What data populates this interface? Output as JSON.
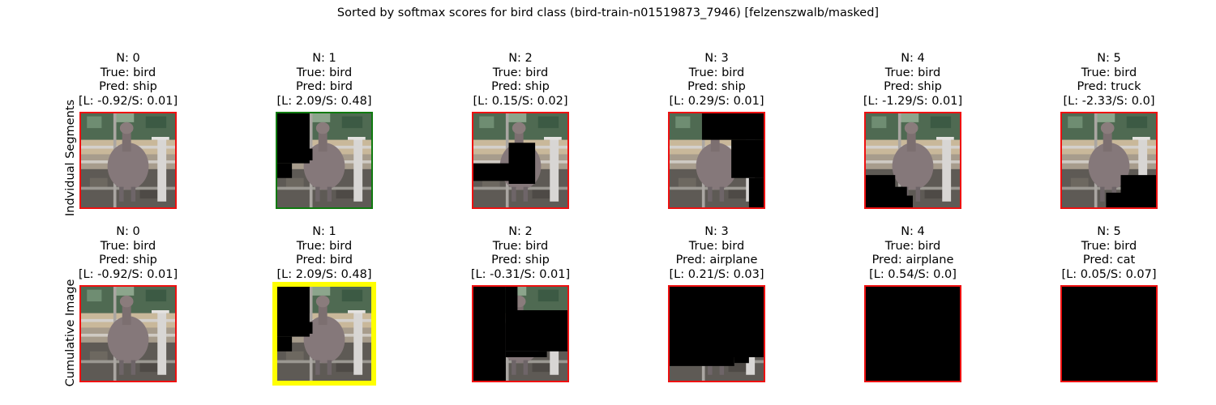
{
  "suptitle": "Sorted by softmax scores for bird class (bird-train-n01519873_7946) [felzenszwalb/masked]",
  "colors": {
    "red": "#ee1111",
    "green": "#0f7a0f",
    "yellow": "#ffff00"
  },
  "chart_data": {
    "type": "image-grid",
    "title": "Sorted by softmax scores for bird class (bird-train-n01519873_7946) [felzenszwalb/masked]",
    "rows": [
      {
        "label": "Indvidual Segments",
        "panels": [
          {
            "n": "N: 0",
            "true": "True: bird",
            "pred": "Pred: ship",
            "score": "[L: -0.92/S: 0.01]",
            "border": "red"
          },
          {
            "n": "N: 1",
            "true": "True: bird",
            "pred": "Pred: bird",
            "score": "[L: 2.09/S: 0.48]",
            "border": "green"
          },
          {
            "n": "N: 2",
            "true": "True: bird",
            "pred": "Pred: ship",
            "score": "[L: 0.15/S: 0.02]",
            "border": "red"
          },
          {
            "n": "N: 3",
            "true": "True: bird",
            "pred": "Pred: ship",
            "score": "[L: 0.29/S: 0.01]",
            "border": "red"
          },
          {
            "n": "N: 4",
            "true": "True: bird",
            "pred": "Pred: ship",
            "score": "[L: -1.29/S: 0.01]",
            "border": "red"
          },
          {
            "n": "N: 5",
            "true": "True: bird",
            "pred": "Pred: truck",
            "score": "[L: -2.33/S: 0.0]",
            "border": "red"
          }
        ]
      },
      {
        "label": "Cumulative Image",
        "panels": [
          {
            "n": "N: 0",
            "true": "True: bird",
            "pred": "Pred: ship",
            "score": "[L: -0.92/S: 0.01]",
            "border": "red"
          },
          {
            "n": "N: 1",
            "true": "True: bird",
            "pred": "Pred: bird",
            "score": "[L: 2.09/S: 0.48]",
            "border": "yellow"
          },
          {
            "n": "N: 2",
            "true": "True: bird",
            "pred": "Pred: ship",
            "score": "[L: -0.31/S: 0.01]",
            "border": "red"
          },
          {
            "n": "N: 3",
            "true": "True: bird",
            "pred": "Pred: airplane",
            "score": "[L: 0.21/S: 0.03]",
            "border": "red"
          },
          {
            "n": "N: 4",
            "true": "True: bird",
            "pred": "Pred: airplane",
            "score": "[L: 0.54/S: 0.0]",
            "border": "red"
          },
          {
            "n": "N: 5",
            "true": "True: bird",
            "pred": "Pred: cat",
            "score": "[L: 0.05/S: 0.07]",
            "border": "red"
          }
        ]
      }
    ]
  }
}
